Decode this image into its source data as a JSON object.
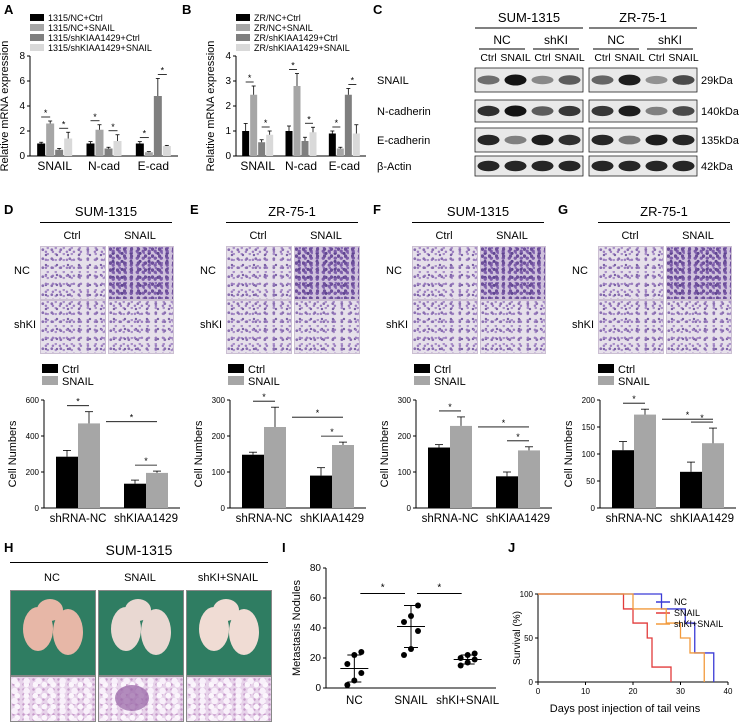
{
  "panels": {
    "A": {
      "label": "A"
    },
    "B": {
      "label": "B"
    },
    "C": {
      "label": "C"
    },
    "D": {
      "label": "D"
    },
    "E": {
      "label": "E"
    },
    "F": {
      "label": "F"
    },
    "G": {
      "label": "G"
    },
    "H": {
      "label": "H"
    },
    "I": {
      "label": "I"
    },
    "J": {
      "label": "J"
    }
  },
  "western": {
    "cell_lines": [
      "SUM-1315",
      "ZR-75-1"
    ],
    "groups": [
      "NC",
      "shKI"
    ],
    "lanes": [
      "Ctrl",
      "SNAIL",
      "Ctrl",
      "SNAIL"
    ],
    "rows": [
      {
        "protein": "SNAIL",
        "size": "29kDa"
      },
      {
        "protein": "N-cadherin",
        "size": "140kDa"
      },
      {
        "protein": "E-cadherin",
        "size": "135kDa"
      },
      {
        "protein": "β-Actin",
        "size": "42kDa"
      }
    ]
  },
  "transwell": {
    "D": {
      "title": "SUM-1315",
      "cols": [
        "Ctrl",
        "SNAIL"
      ],
      "rows": [
        "NC",
        "shKI"
      ]
    },
    "E": {
      "title": "ZR-75-1",
      "cols": [
        "Ctrl",
        "SNAIL"
      ],
      "rows": [
        "NC",
        "shKI"
      ]
    },
    "F": {
      "title": "SUM-1315",
      "cols": [
        "Ctrl",
        "SNAIL"
      ],
      "rows": [
        "NC",
        "shKI"
      ]
    },
    "G": {
      "title": "ZR-75-1",
      "cols": [
        "Ctrl",
        "SNAIL"
      ],
      "rows": [
        "NC",
        "shKI"
      ]
    }
  },
  "lung": {
    "title": "SUM-1315",
    "groups": [
      "NC",
      "SNAIL",
      "shKI+SNAIL"
    ]
  },
  "colors": {
    "black": "#000000",
    "dark_gray": "#7f7f7f",
    "mid_gray": "#a6a6a6",
    "light_gray": "#d9d9d9",
    "survival_blue": "#3b3bd6",
    "survival_red": "#e23b3b",
    "survival_orange": "#f29a3c"
  },
  "chart_data": [
    {
      "id": "A",
      "type": "bar",
      "ylabel": "Relative mRNA expression",
      "ylim": [
        0,
        8
      ],
      "yticks": [
        0,
        2,
        4,
        6,
        8
      ],
      "categories": [
        "SNAIL",
        "N-cad",
        "E-cad"
      ],
      "series": [
        {
          "name": "1315/NC+Ctrl",
          "color": "#000000",
          "values": [
            1.0,
            1.0,
            1.0
          ],
          "err": [
            0.1,
            0.15,
            0.15
          ]
        },
        {
          "name": "1315/NC+SNAIL",
          "color": "#a6a6a6",
          "values": [
            2.6,
            2.1,
            0.3
          ],
          "err": [
            0.2,
            0.4,
            0.05
          ]
        },
        {
          "name": "1315/shKIAA1429+Ctrl",
          "color": "#7f7f7f",
          "values": [
            0.5,
            0.6,
            4.8
          ],
          "err": [
            0.1,
            0.1,
            1.4
          ]
        },
        {
          "name": "1315/shKIAA1429+SNAIL",
          "color": "#d9d9d9",
          "values": [
            1.4,
            1.2,
            0.8
          ],
          "err": [
            0.5,
            0.5,
            0.05
          ]
        }
      ]
    },
    {
      "id": "B",
      "type": "bar",
      "ylabel": "Relative mRNA expression",
      "ylim": [
        0,
        4
      ],
      "yticks": [
        0,
        1,
        2,
        3,
        4
      ],
      "categories": [
        "SNAIL",
        "N-cad",
        "E-cad"
      ],
      "series": [
        {
          "name": "ZR/NC+Ctrl",
          "color": "#000000",
          "values": [
            1.0,
            1.0,
            0.9
          ],
          "err": [
            0.3,
            0.2,
            0.1
          ]
        },
        {
          "name": "ZR/NC+SNAIL",
          "color": "#a6a6a6",
          "values": [
            2.45,
            2.8,
            0.3
          ],
          "err": [
            0.35,
            0.5,
            0.05
          ]
        },
        {
          "name": "ZR/shKIAA1429+Ctrl",
          "color": "#7f7f7f",
          "values": [
            0.55,
            0.6,
            2.45
          ],
          "err": [
            0.1,
            0.15,
            0.25
          ]
        },
        {
          "name": "ZR/shKIAA1429+SNAIL",
          "color": "#d9d9d9",
          "values": [
            0.85,
            0.95,
            0.9
          ],
          "err": [
            0.15,
            0.2,
            0.35
          ]
        }
      ]
    },
    {
      "id": "D",
      "type": "bar",
      "ylabel": "Cell Numbers",
      "ylim": [
        0,
        600
      ],
      "yticks": [
        0,
        200,
        400,
        600
      ],
      "categories": [
        "shRNA-NC",
        "shKIAA1429"
      ],
      "series": [
        {
          "name": "Ctrl",
          "color": "#000000",
          "values": [
            285,
            135
          ],
          "err": [
            35,
            20
          ]
        },
        {
          "name": "SNAIL",
          "color": "#a6a6a6",
          "values": [
            470,
            195
          ],
          "err": [
            65,
            10
          ]
        }
      ]
    },
    {
      "id": "E",
      "type": "bar",
      "ylabel": "Cell Numbers",
      "ylim": [
        0,
        300
      ],
      "yticks": [
        0,
        100,
        200,
        300
      ],
      "categories": [
        "shRNA-NC",
        "shKIAA1429"
      ],
      "series": [
        {
          "name": "Ctrl",
          "color": "#000000",
          "values": [
            148,
            90
          ],
          "err": [
            7,
            22
          ]
        },
        {
          "name": "SNAIL",
          "color": "#a6a6a6",
          "values": [
            225,
            175
          ],
          "err": [
            55,
            8
          ]
        }
      ]
    },
    {
      "id": "F",
      "type": "bar",
      "ylabel": "Cell Numbers",
      "ylim": [
        0,
        300
      ],
      "yticks": [
        0,
        100,
        200,
        300
      ],
      "categories": [
        "shRNA-NC",
        "shKIAA1429"
      ],
      "series": [
        {
          "name": "Ctrl",
          "color": "#000000",
          "values": [
            168,
            88
          ],
          "err": [
            8,
            12
          ]
        },
        {
          "name": "SNAIL",
          "color": "#a6a6a6",
          "values": [
            228,
            160
          ],
          "err": [
            25,
            10
          ]
        }
      ]
    },
    {
      "id": "G",
      "type": "bar",
      "ylabel": "Cell Numbers",
      "ylim": [
        0,
        200
      ],
      "yticks": [
        0,
        50,
        100,
        150,
        200
      ],
      "categories": [
        "shRNA-NC",
        "shKIAA1429"
      ],
      "series": [
        {
          "name": "Ctrl",
          "color": "#000000",
          "values": [
            107,
            67
          ],
          "err": [
            16,
            18
          ]
        },
        {
          "name": "SNAIL",
          "color": "#a6a6a6",
          "values": [
            173,
            120
          ],
          "err": [
            10,
            28
          ]
        }
      ]
    },
    {
      "id": "I",
      "type": "scatter",
      "ylabel": "Metastasis Nodules",
      "ylim": [
        0,
        80
      ],
      "yticks": [
        0,
        20,
        40,
        60,
        80
      ],
      "categories": [
        "NC",
        "SNAIL",
        "shKI+SNAIL"
      ],
      "points": [
        [
          2,
          5,
          10,
          16,
          22,
          24
        ],
        [
          22,
          26,
          38,
          44,
          48,
          55
        ],
        [
          15,
          17,
          19,
          20,
          22,
          23
        ]
      ],
      "mean": [
        13,
        41,
        19
      ],
      "sd": [
        9,
        14,
        3
      ]
    },
    {
      "id": "J",
      "type": "line",
      "ylabel": "Survival (%)",
      "xlabel": "Days post injection of tail veins",
      "xlim": [
        0,
        40
      ],
      "xticks": [
        0,
        10,
        20,
        30,
        40
      ],
      "ylim": [
        0,
        100
      ],
      "yticks": [
        0,
        50,
        100
      ],
      "series": [
        {
          "name": "NC",
          "color": "#3b3bd6",
          "x": [
            0,
            26,
            26,
            31,
            31,
            33,
            33,
            37,
            37
          ],
          "y": [
            100,
            100,
            83,
            83,
            67,
            67,
            33,
            33,
            0
          ]
        },
        {
          "name": "SNAIL",
          "color": "#e23b3b",
          "x": [
            0,
            18,
            18,
            20,
            20,
            23,
            23,
            24,
            24,
            28,
            28
          ],
          "y": [
            100,
            100,
            83,
            83,
            67,
            67,
            50,
            50,
            17,
            17,
            0
          ]
        },
        {
          "name": "shKI+SNAIL",
          "color": "#f29a3c",
          "x": [
            0,
            20,
            20,
            27,
            27,
            30,
            30,
            32,
            32,
            35,
            35
          ],
          "y": [
            100,
            100,
            83,
            83,
            67,
            67,
            50,
            50,
            33,
            33,
            0
          ]
        }
      ]
    }
  ]
}
